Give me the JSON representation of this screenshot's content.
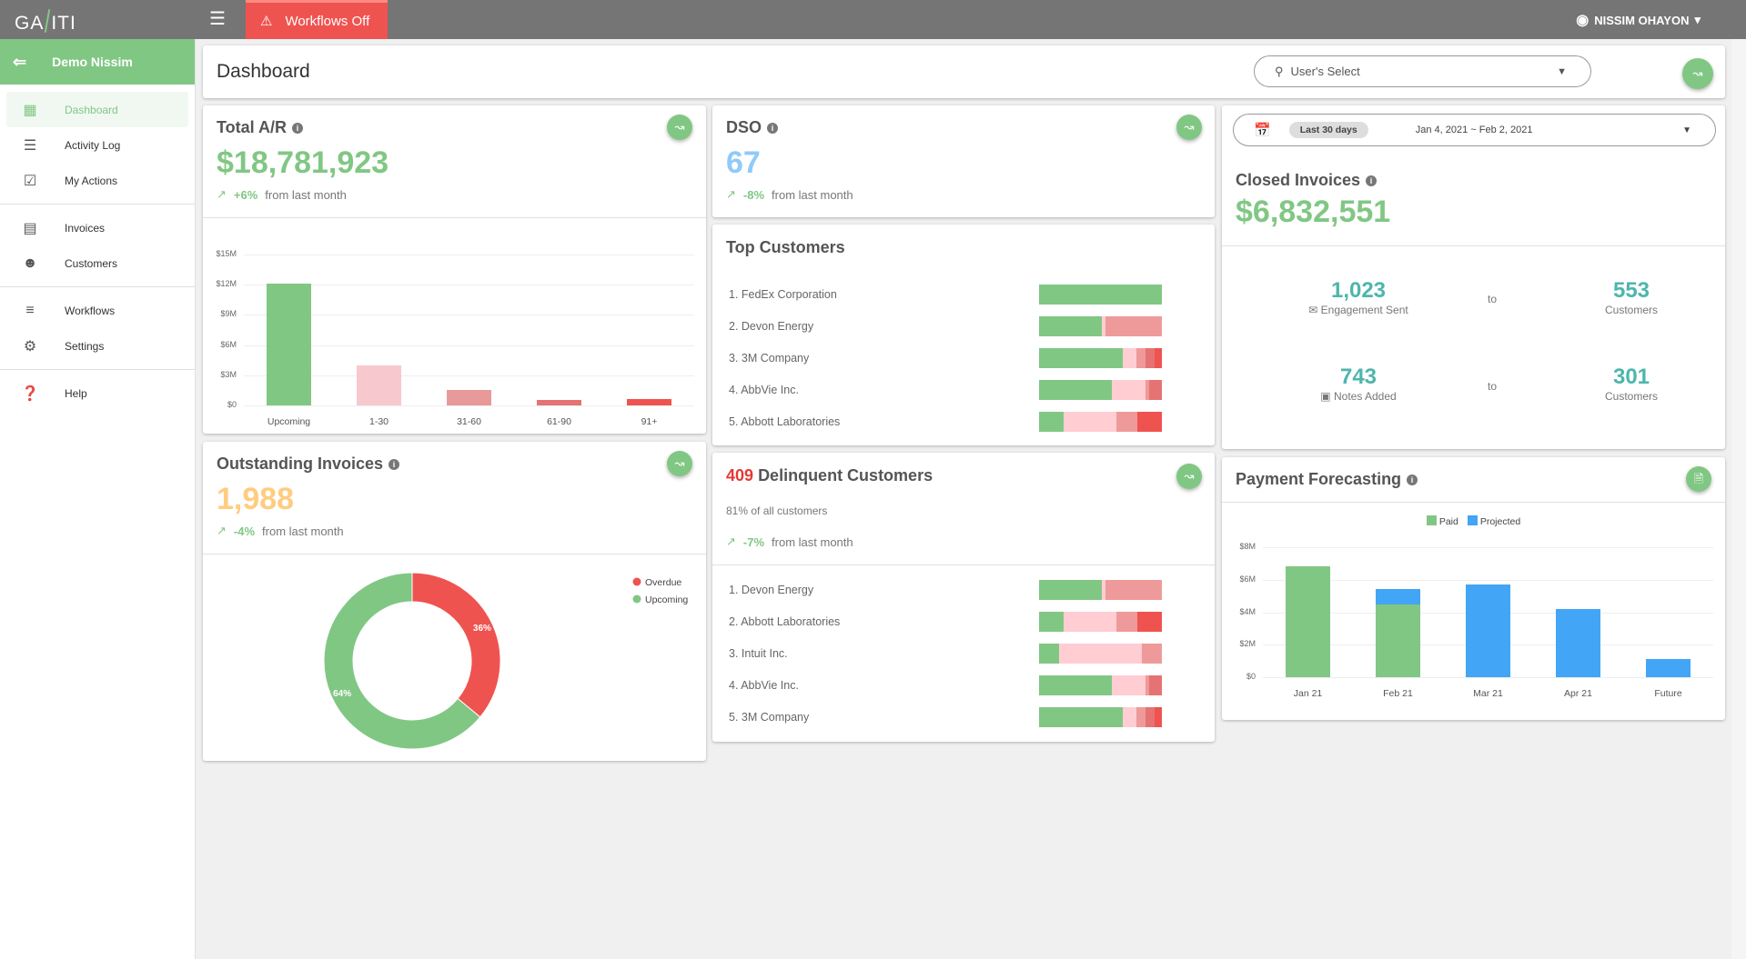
{
  "app": {
    "logo": "GAVITI",
    "workflows_label": "Workflows Off",
    "user": "NISSIM OHAYON"
  },
  "sidebar": {
    "account": "Demo Nissim",
    "items": [
      {
        "label": "Dashboard",
        "icon": "dashboard-icon"
      },
      {
        "label": "Activity Log",
        "icon": "list-icon"
      },
      {
        "label": "My Actions",
        "icon": "calendar-check-icon"
      },
      {
        "label": "Invoices",
        "icon": "receipt-icon"
      },
      {
        "label": "Customers",
        "icon": "people-icon"
      },
      {
        "label": "Workflows",
        "icon": "workflow-icon"
      },
      {
        "label": "Settings",
        "icon": "gear-icon"
      },
      {
        "label": "Help",
        "icon": "help-icon"
      }
    ]
  },
  "header": {
    "title": "Dashboard",
    "user_select": "User's Select"
  },
  "total_ar": {
    "title": "Total A/R",
    "value": "$18,781,923",
    "change": "+6%",
    "change_text": "from last month"
  },
  "dso": {
    "title": "DSO",
    "value": "67",
    "change": "-8%",
    "change_text": "from last month"
  },
  "outstanding": {
    "title": "Outstanding Invoices",
    "value": "1,988",
    "change": "-4%",
    "change_text": "from last month"
  },
  "date_range": {
    "chip": "Last 30 days",
    "range": "Jan 4, 2021 ~ Feb 2, 2021"
  },
  "closed": {
    "title": "Closed Invoices",
    "value": "$6,832,551",
    "engagement_value": "1,023",
    "engagement_label": "Engagement Sent",
    "to1": "to",
    "customers1": "553",
    "customers_label1": "Customers",
    "notes_value": "743",
    "notes_label": "Notes Added",
    "to2": "to",
    "customers2": "301",
    "customers_label2": "Customers"
  },
  "top_customers": {
    "title": "Top Customers",
    "rows": [
      {
        "name": "1. FedEx Corporation",
        "segments": [
          1,
          0,
          0,
          0,
          0
        ]
      },
      {
        "name": "2. Devon Energy",
        "segments": [
          0.51,
          0.03,
          0.46,
          0,
          0
        ]
      },
      {
        "name": "3. 3M Company",
        "segments": [
          0.68,
          0.11,
          0.08,
          0.07,
          0.06
        ]
      },
      {
        "name": "4. AbbVie Inc.",
        "segments": [
          0.59,
          0.28,
          0.03,
          0.1,
          0
        ]
      },
      {
        "name": "5. Abbott Laboratories",
        "segments": [
          0.2,
          0.43,
          0.17,
          0,
          0.2
        ]
      }
    ]
  },
  "delinquent": {
    "count": "409",
    "title": "Delinquent Customers",
    "subtitle": "81% of all customers",
    "change": "-7%",
    "change_text": "from last month",
    "rows": [
      {
        "name": "1. Devon Energy",
        "segments": [
          0.51,
          0.03,
          0.46,
          0,
          0
        ]
      },
      {
        "name": "2. Abbott Laboratories",
        "segments": [
          0.2,
          0.43,
          0.17,
          0,
          0.2
        ]
      },
      {
        "name": "3. Intuit Inc.",
        "segments": [
          0.16,
          0.68,
          0.16,
          0,
          0
        ]
      },
      {
        "name": "4. AbbVie Inc.",
        "segments": [
          0.59,
          0.28,
          0.03,
          0.1,
          0
        ]
      },
      {
        "name": "5. 3M Company",
        "segments": [
          0.68,
          0.11,
          0.08,
          0.07,
          0.06
        ]
      }
    ]
  },
  "segment_colors": [
    "#81c784",
    "#ffcdd2",
    "#ef9a9a",
    "#e57373",
    "#ef5350"
  ],
  "payment": {
    "title": "Payment Forecasting"
  },
  "chart_data": [
    {
      "type": "bar",
      "title": "Total A/R",
      "categories": [
        "Upcoming",
        "1-30",
        "31-60",
        "61-90",
        "91+"
      ],
      "values": [
        12.1,
        4.0,
        1.5,
        0.5,
        0.6
      ],
      "unit": "$M",
      "yticks": [
        "$0",
        "$3M",
        "$6M",
        "$9M",
        "$12M",
        "$15M"
      ],
      "ylim": [
        0,
        15
      ],
      "colors": [
        "#81c784",
        "#f8c8cf",
        "#e89a9a",
        "#e57373",
        "#ef5350"
      ],
      "grid": true
    },
    {
      "type": "pie",
      "title": "Outstanding Invoices",
      "donut": true,
      "slices": [
        {
          "name": "Overdue",
          "value": 36,
          "label": "36%",
          "color": "#ef5350"
        },
        {
          "name": "Upcoming",
          "value": 64,
          "label": "64%",
          "color": "#81c784"
        }
      ],
      "legend": "top-right"
    },
    {
      "type": "bar",
      "stacked": true,
      "title": "Payment Forecasting",
      "categories": [
        "Jan 21",
        "Feb 21",
        "Mar 21",
        "Apr 21",
        "Future"
      ],
      "series": [
        {
          "name": "Paid",
          "color": "#81c784",
          "values": [
            6.8,
            4.5,
            0,
            0,
            0
          ]
        },
        {
          "name": "Projected",
          "color": "#42a5f5",
          "values": [
            0,
            0.9,
            5.7,
            4.2,
            1.1
          ]
        }
      ],
      "yticks": [
        "$0",
        "$2M",
        "$4M",
        "$6M",
        "$8M"
      ],
      "ylim": [
        0,
        8
      ],
      "legend": "top",
      "grid": true
    }
  ]
}
